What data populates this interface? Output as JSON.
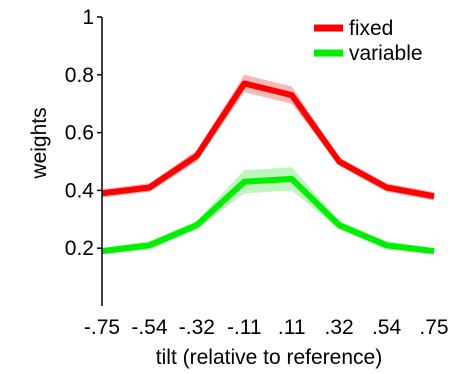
{
  "chart_data": {
    "type": "line",
    "xlabel": "tilt (relative to reference)",
    "ylabel": "weights",
    "x_tick_labels": [
      "-.75",
      "-.54",
      "-.32",
      "-.11",
      ".11",
      ".32",
      ".54",
      ".75"
    ],
    "y_ticks": [
      "0.2",
      "0.4",
      "0.6",
      "0.8",
      "1"
    ],
    "ylim": [
      0.0,
      1.0
    ],
    "grid": false,
    "legend_position": "top-right",
    "series": [
      {
        "name": "fixed",
        "color": "#ff0000",
        "band_color": "#f4a0a0",
        "values": [
          0.39,
          0.41,
          0.52,
          0.77,
          0.73,
          0.5,
          0.41,
          0.38
        ],
        "lower": [
          0.375,
          0.395,
          0.5,
          0.74,
          0.7,
          0.485,
          0.395,
          0.365
        ],
        "upper": [
          0.405,
          0.425,
          0.54,
          0.8,
          0.76,
          0.515,
          0.425,
          0.395
        ]
      },
      {
        "name": "variable",
        "color": "#00ee00",
        "band_color": "#a8f0a8",
        "values": [
          0.19,
          0.21,
          0.28,
          0.43,
          0.44,
          0.28,
          0.21,
          0.19
        ],
        "lower": [
          0.18,
          0.195,
          0.265,
          0.39,
          0.4,
          0.265,
          0.195,
          0.18
        ],
        "upper": [
          0.2,
          0.225,
          0.295,
          0.47,
          0.48,
          0.295,
          0.225,
          0.2
        ]
      }
    ]
  }
}
